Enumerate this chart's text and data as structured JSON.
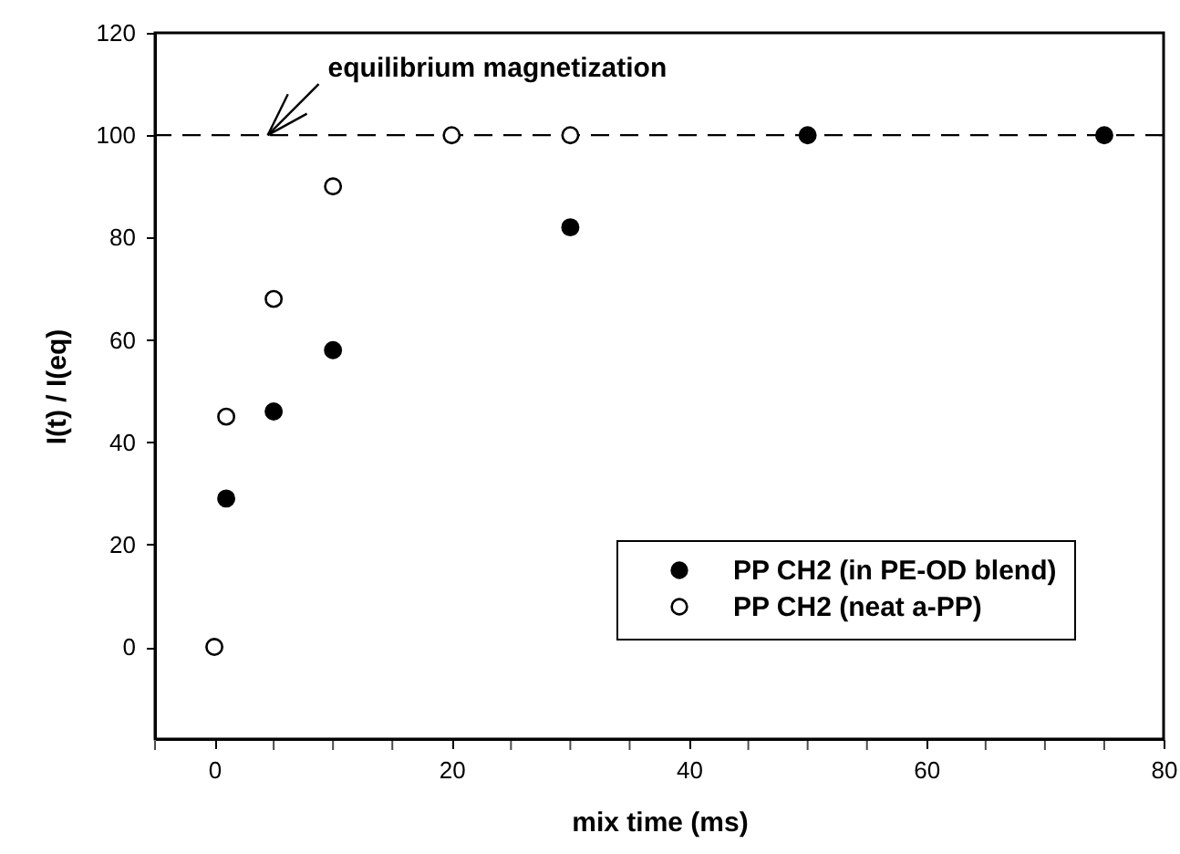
{
  "chart_data": {
    "type": "scatter",
    "xlabel": "mix time (ms)",
    "ylabel": "I(t) / I(eq)",
    "xlim": [
      -5,
      80
    ],
    "xticks": [
      {
        "value": -5,
        "label": null
      },
      0,
      {
        "value": 5,
        "label": null
      },
      {
        "value": 10,
        "label": null
      },
      {
        "value": 15,
        "label": null
      },
      20,
      {
        "value": 25,
        "label": null
      },
      {
        "value": 30,
        "label": null
      },
      {
        "value": 35,
        "label": null
      },
      40,
      {
        "value": 45,
        "label": null
      },
      {
        "value": 50,
        "label": null
      },
      {
        "value": 55,
        "label": null
      },
      60,
      {
        "value": 65,
        "label": null
      },
      {
        "value": 70,
        "label": null
      },
      {
        "value": 75,
        "label": null
      },
      80
    ],
    "ylim": [
      -18,
      120
    ],
    "yticks": [
      0,
      20,
      40,
      60,
      80,
      100,
      120
    ],
    "series": [
      {
        "name": "PP CH2 (in PE-OD blend)",
        "color": "#000000",
        "x": [
          1,
          5,
          10,
          30,
          50,
          75
        ],
        "values": [
          29,
          46,
          58,
          82,
          100,
          100
        ]
      },
      {
        "name": "PP CH2 (neat a-PP)",
        "color": "#ffffff",
        "x": [
          0,
          1,
          5,
          10,
          20,
          30
        ],
        "values": [
          0,
          45,
          68,
          90,
          100,
          100
        ]
      }
    ],
    "ref_lines": [
      {
        "axis": "y",
        "value": 100,
        "line_style": "dashed",
        "color": "#000000"
      }
    ],
    "annotations": [
      {
        "text": "equilibrium magnetization",
        "x": 4.5,
        "y": 100
      }
    ],
    "marker": "circle",
    "legend": "bottom right",
    "grid": false
  }
}
